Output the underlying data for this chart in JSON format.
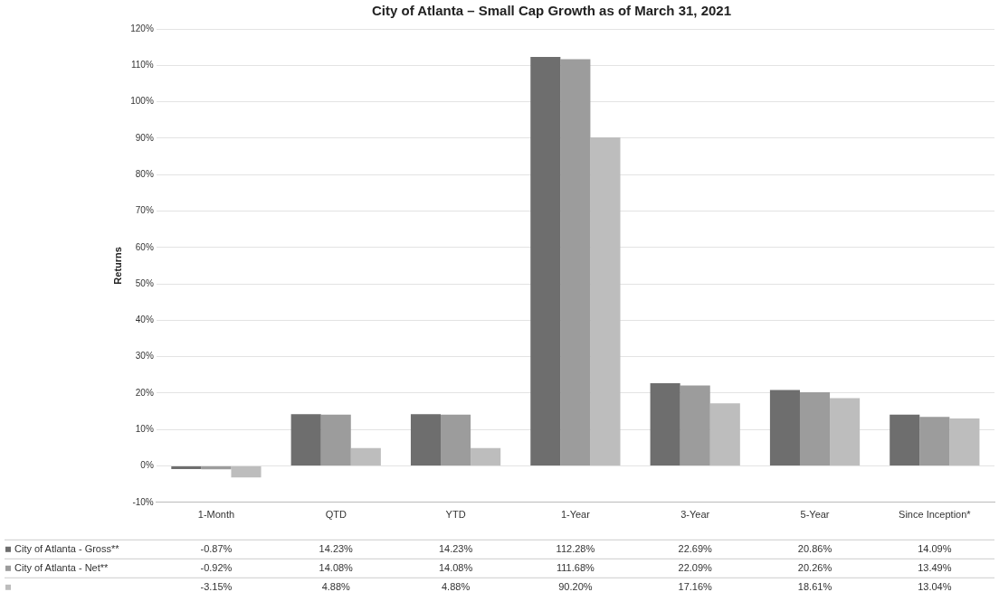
{
  "chart_data": {
    "type": "bar",
    "title": "City of Atlanta – Small Cap Growth as of March 31, 2021",
    "ylabel": "Returns",
    "categories": [
      "1-Month",
      "QTD",
      "YTD",
      "1-Year",
      "3-Year",
      "5-Year",
      "Since Inception*"
    ],
    "series": [
      {
        "name": "City of Atlanta - Gross**",
        "color": "#6e6e6e",
        "values": [
          -0.87,
          14.23,
          14.23,
          112.28,
          22.69,
          20.86,
          14.09
        ],
        "value_labels": [
          "-0.87%",
          "14.23%",
          "14.23%",
          "112.28%",
          "22.69%",
          "20.86%",
          "14.09%"
        ]
      },
      {
        "name": "City of Atlanta - Net**",
        "color": "#9c9c9c",
        "values": [
          -0.92,
          14.08,
          14.08,
          111.68,
          22.09,
          20.26,
          13.49
        ],
        "value_labels": [
          "-0.92%",
          "14.08%",
          "14.08%",
          "111.68%",
          "22.09%",
          "20.26%",
          "13.49%"
        ]
      },
      {
        "color": "#bdbdbd",
        "values": [
          -3.15,
          4.88,
          4.88,
          90.2,
          17.16,
          18.61,
          13.04
        ],
        "value_labels": [
          "-3.15%",
          "4.88%",
          "4.88%",
          "90.20%",
          "17.16%",
          "18.61%",
          "13.04%"
        ]
      }
    ],
    "ylim": [
      -10,
      120
    ],
    "yticks": [
      {
        "value": -10,
        "label": "-10%"
      },
      {
        "value": 0,
        "label": "0%"
      },
      {
        "value": 10,
        "label": "10%"
      },
      {
        "value": 20,
        "label": "20%"
      },
      {
        "value": 30,
        "label": "30%"
      },
      {
        "value": 40,
        "label": "40%"
      },
      {
        "value": 50,
        "label": "50%"
      },
      {
        "value": 60,
        "label": "60%"
      },
      {
        "value": 70,
        "label": "70%"
      },
      {
        "value": 80,
        "label": "80%"
      },
      {
        "value": 90,
        "label": "90%"
      },
      {
        "value": 100,
        "label": "100%"
      },
      {
        "value": 110,
        "label": "110%"
      },
      {
        "value": 120,
        "label": "120%"
      }
    ],
    "grid": "y",
    "legend": "bottom"
  }
}
